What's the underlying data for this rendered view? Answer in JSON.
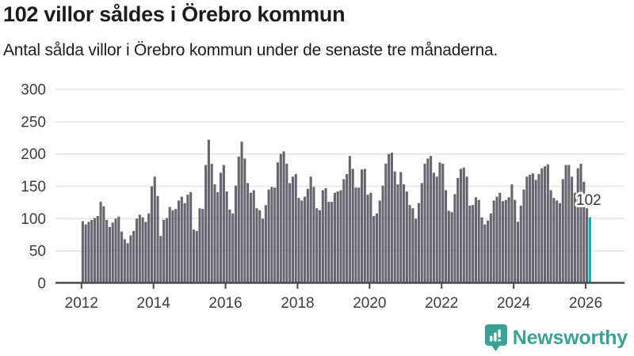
{
  "header": {
    "title": "102 villor såldes i Örebro kommun",
    "subtitle": "Antal sålda villor i Örebro kommun under de senaste tre månaderna."
  },
  "branding": {
    "name": "Newsworthy",
    "logo_icon": "bar-chart-speech-bubble",
    "color": "#3aa292"
  },
  "chart_data": {
    "type": "bar",
    "title": "102 villor såldes i Örebro kommun",
    "subtitle": "Antal sålda villor i Örebro kommun under de senaste tre månaderna.",
    "frequency": "monthly",
    "x_start_year": 2012,
    "x_tick_labels": [
      "2012",
      "2014",
      "2016",
      "2018",
      "2020",
      "2022",
      "2024",
      "2026"
    ],
    "ylim": [
      0,
      300
    ],
    "yticks": [
      0,
      50,
      100,
      150,
      200,
      250,
      300
    ],
    "grid": true,
    "legend": "none",
    "values": [
      96,
      91,
      95,
      98,
      101,
      104,
      126,
      119,
      98,
      87,
      94,
      100,
      103,
      80,
      68,
      62,
      74,
      81,
      100,
      106,
      102,
      95,
      108,
      150,
      165,
      135,
      73,
      98,
      101,
      118,
      113,
      115,
      128,
      134,
      124,
      137,
      141,
      83,
      81,
      116,
      115,
      183,
      222,
      185,
      153,
      141,
      171,
      183,
      142,
      114,
      108,
      151,
      196,
      219,
      193,
      155,
      140,
      144,
      116,
      113,
      100,
      121,
      145,
      149,
      148,
      187,
      200,
      204,
      185,
      155,
      165,
      169,
      132,
      128,
      134,
      146,
      165,
      149,
      116,
      113,
      144,
      147,
      126,
      126,
      140,
      142,
      144,
      161,
      169,
      197,
      177,
      148,
      148,
      176,
      177,
      137,
      140,
      104,
      108,
      128,
      151,
      185,
      200,
      202,
      173,
      153,
      172,
      153,
      142,
      121,
      116,
      100,
      124,
      155,
      185,
      193,
      197,
      171,
      165,
      187,
      185,
      144,
      112,
      110,
      138,
      163,
      177,
      179,
      165,
      120,
      121,
      133,
      129,
      102,
      91,
      97,
      108,
      128,
      134,
      140,
      127,
      129,
      133,
      153,
      129,
      95,
      120,
      145,
      165,
      168,
      170,
      160,
      169,
      178,
      181,
      184,
      144,
      132,
      128,
      124,
      161,
      183,
      183,
      165,
      140,
      178,
      185,
      157,
      116,
      102
    ],
    "highlight": {
      "position": "last",
      "value": 102,
      "label": "102",
      "color": "#00b1b4"
    },
    "colors": {
      "bar": "#67666e",
      "highlight": "#00b1b4",
      "grid": "#e3e3e3",
      "axis": "#4a4a4a",
      "tick_label": "#3d3d3d",
      "annotation_text": "#383838",
      "annotation_halo": "#ffffff"
    }
  }
}
